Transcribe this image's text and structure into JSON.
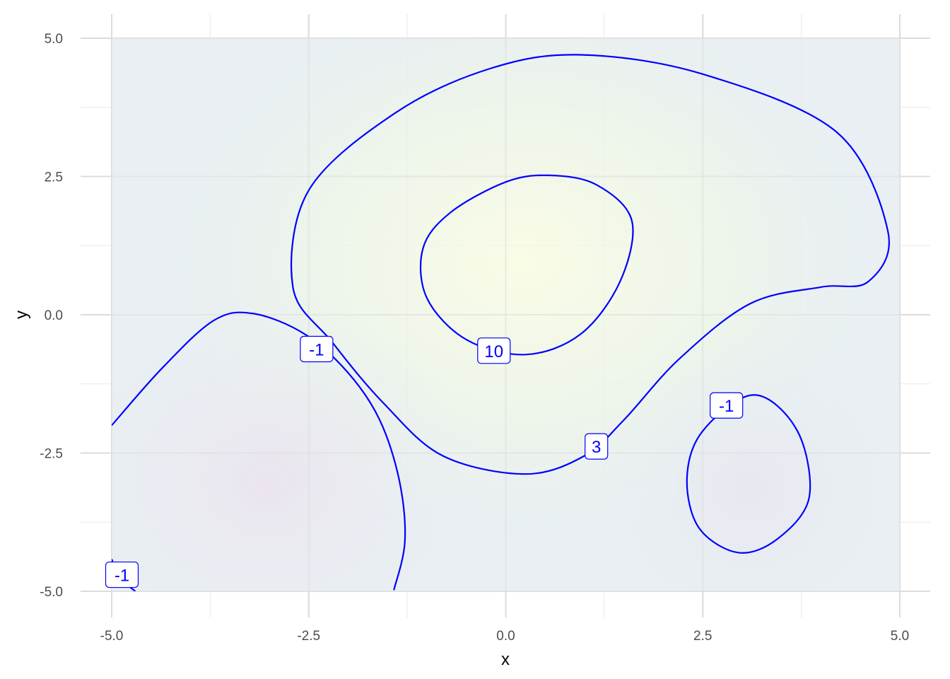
{
  "chart_data": {
    "type": "contour",
    "xlabel": "x",
    "ylabel": "y",
    "xlim": [
      -5,
      5
    ],
    "ylim": [
      -5,
      5
    ],
    "x_ticks": [
      {
        "value": -5,
        "label": "-5.0"
      },
      {
        "value": -2.5,
        "label": "-2.5"
      },
      {
        "value": 0,
        "label": "0.0"
      },
      {
        "value": 2.5,
        "label": "2.5"
      },
      {
        "value": 5,
        "label": "5.0"
      }
    ],
    "y_ticks": [
      {
        "value": 5,
        "label": "5.0"
      },
      {
        "value": 2.5,
        "label": "2.5"
      },
      {
        "value": 0,
        "label": "0.0"
      },
      {
        "value": -2.5,
        "label": "-2.5"
      },
      {
        "value": -5,
        "label": "-5.0"
      }
    ],
    "grid": true,
    "fill_colors": {
      "base": "#e8eef2",
      "peak": "#fafce6",
      "mid": "#e6f3ec",
      "trough": "#ebe4ee"
    },
    "line_color": "#0000ff",
    "contours": [
      {
        "level": 10,
        "label": "10",
        "label_at": [
          -0.15,
          -0.65
        ],
        "closed": true,
        "points": [
          [
            0.55,
            2.52
          ],
          [
            1.15,
            2.35
          ],
          [
            1.6,
            1.7
          ],
          [
            1.45,
            0.6
          ],
          [
            0.95,
            -0.35
          ],
          [
            0.25,
            -0.72
          ],
          [
            -0.5,
            -0.45
          ],
          [
            -1.0,
            0.3
          ],
          [
            -1.05,
            1.2
          ],
          [
            -0.7,
            1.85
          ],
          [
            0.0,
            2.4
          ]
        ]
      },
      {
        "level": 3,
        "label": "3",
        "label_at": [
          1.15,
          -2.38
        ],
        "closed": true,
        "points": [
          [
            0.95,
            4.7
          ],
          [
            2.5,
            4.35
          ],
          [
            4.2,
            3.3
          ],
          [
            4.85,
            1.5
          ],
          [
            4.6,
            0.6
          ],
          [
            4.0,
            0.5
          ],
          [
            3.1,
            0.2
          ],
          [
            2.2,
            -0.8
          ],
          [
            1.5,
            -1.9
          ],
          [
            1.0,
            -2.55
          ],
          [
            0.25,
            -2.88
          ],
          [
            -0.8,
            -2.55
          ],
          [
            -1.55,
            -1.6
          ],
          [
            -2.2,
            -0.5
          ],
          [
            -2.7,
            0.5
          ],
          [
            -2.5,
            2.25
          ],
          [
            -1.4,
            3.65
          ],
          [
            -0.2,
            4.45
          ]
        ]
      },
      {
        "level": -1,
        "label": "-1",
        "label_at": [
          -2.4,
          -0.62
        ],
        "closed": false,
        "points": [
          [
            -5.0,
            -2.0
          ],
          [
            -4.35,
            -0.95
          ],
          [
            -3.7,
            -0.1
          ],
          [
            -3.2,
            0.02
          ],
          [
            -2.55,
            -0.35
          ],
          [
            -2.0,
            -1.05
          ],
          [
            -1.6,
            -1.9
          ],
          [
            -1.35,
            -3.0
          ],
          [
            -1.28,
            -4.1
          ],
          [
            -1.42,
            -4.98
          ]
        ]
      },
      {
        "level": -1,
        "label": "-1",
        "label_at": [
          2.8,
          -1.64
        ],
        "closed": true,
        "points": [
          [
            3.15,
            -1.45
          ],
          [
            3.7,
            -2.1
          ],
          [
            3.85,
            -3.3
          ],
          [
            3.45,
            -4.05
          ],
          [
            2.95,
            -4.3
          ],
          [
            2.45,
            -3.85
          ],
          [
            2.3,
            -2.95
          ],
          [
            2.5,
            -2.1
          ]
        ]
      },
      {
        "level": -1,
        "label": "-1",
        "label_at": [
          -4.87,
          -4.7
        ],
        "closed": false,
        "points": [
          [
            -5.0,
            -4.42
          ],
          [
            -4.9,
            -4.75
          ],
          [
            -4.7,
            -5.0
          ]
        ]
      }
    ]
  }
}
